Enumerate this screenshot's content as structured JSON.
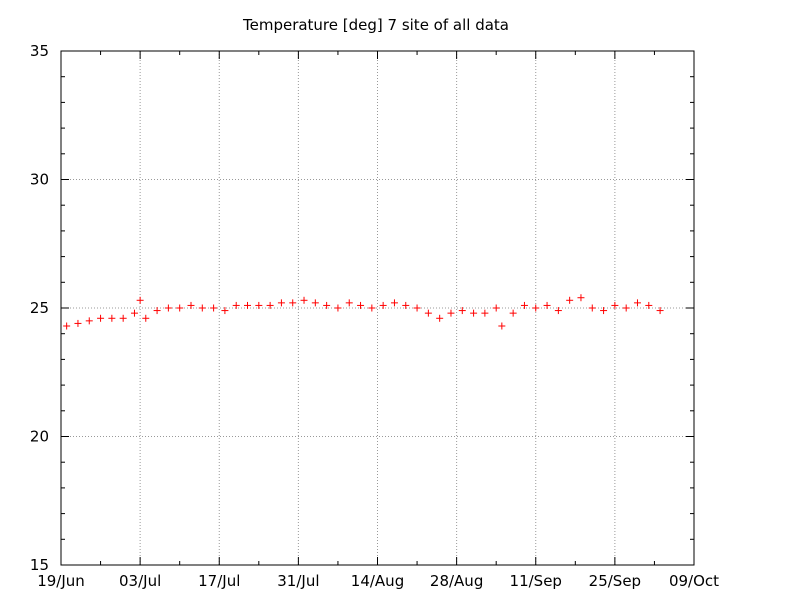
{
  "chart_data": {
    "type": "scatter",
    "title": "Temperature [deg] 7 site of all data",
    "xlabel": "",
    "ylabel": "",
    "ylim": [
      15,
      35
    ],
    "xlim": [
      "2020-06-19",
      "2020-10-09"
    ],
    "yticks": [
      15,
      20,
      25,
      30,
      35
    ],
    "xticks": [
      "19/Jun",
      "03/Jul",
      "17/Jul",
      "31/Jul",
      "14/Aug",
      "28/Aug",
      "11/Sep",
      "25/Sep",
      "09/Oct"
    ],
    "grid": true,
    "marker": "+",
    "series_color": "#ff0000",
    "x": [
      "2020-06-20",
      "2020-06-22",
      "2020-06-24",
      "2020-06-26",
      "2020-06-28",
      "2020-06-30",
      "2020-07-02",
      "2020-07-03",
      "2020-07-04",
      "2020-07-06",
      "2020-07-08",
      "2020-07-10",
      "2020-07-12",
      "2020-07-14",
      "2020-07-16",
      "2020-07-18",
      "2020-07-20",
      "2020-07-22",
      "2020-07-24",
      "2020-07-26",
      "2020-07-28",
      "2020-07-30",
      "2020-08-01",
      "2020-08-03",
      "2020-08-05",
      "2020-08-07",
      "2020-08-09",
      "2020-08-11",
      "2020-08-13",
      "2020-08-15",
      "2020-08-17",
      "2020-08-19",
      "2020-08-21",
      "2020-08-23",
      "2020-08-25",
      "2020-08-27",
      "2020-08-29",
      "2020-08-31",
      "2020-09-02",
      "2020-09-04",
      "2020-09-05",
      "2020-09-07",
      "2020-09-09",
      "2020-09-11",
      "2020-09-13",
      "2020-09-15",
      "2020-09-17",
      "2020-09-19",
      "2020-09-21",
      "2020-09-23",
      "2020-09-25",
      "2020-09-27",
      "2020-09-29",
      "2020-10-01",
      "2020-10-03"
    ],
    "y": [
      24.3,
      24.4,
      24.5,
      24.6,
      24.6,
      24.6,
      24.8,
      25.3,
      24.6,
      24.9,
      25.0,
      25.0,
      25.1,
      25.0,
      25.0,
      24.9,
      25.1,
      25.1,
      25.1,
      25.1,
      25.2,
      25.2,
      25.3,
      25.2,
      25.1,
      25.0,
      25.2,
      25.1,
      25.0,
      25.1,
      25.2,
      25.1,
      25.0,
      24.8,
      24.6,
      24.8,
      24.9,
      24.8,
      24.8,
      25.0,
      24.3,
      24.8,
      25.1,
      25.0,
      25.1,
      24.9,
      25.3,
      25.4,
      25.0,
      24.9,
      25.1,
      25.0,
      25.2,
      25.1,
      24.9
    ]
  }
}
